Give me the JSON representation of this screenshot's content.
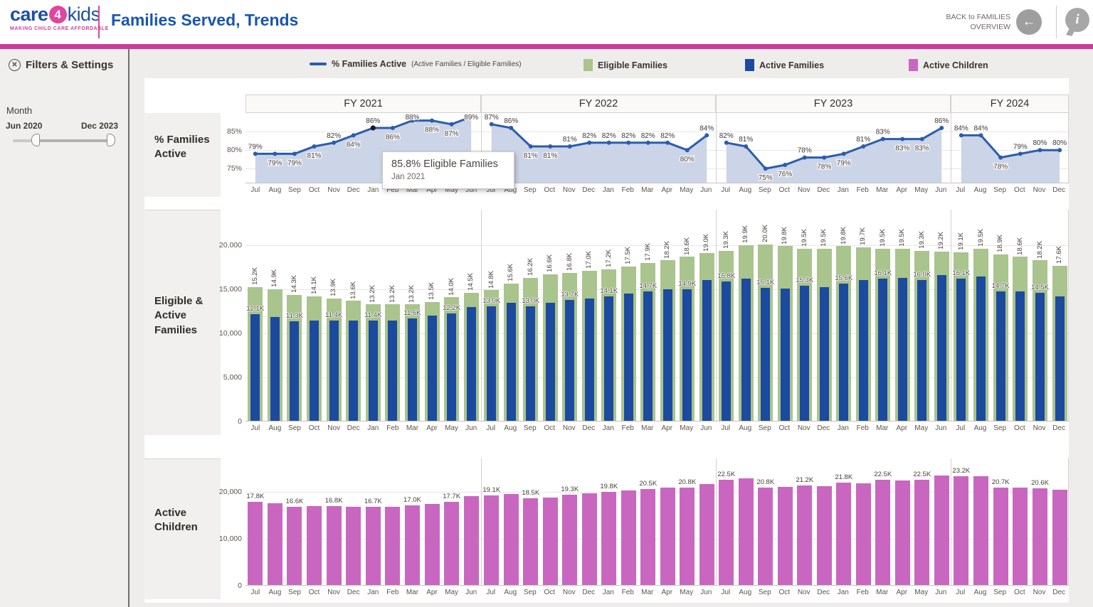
{
  "header": {
    "logo_care": "care",
    "logo_4": "4",
    "logo_kids": "kids",
    "tagline": "MAKING CHILD CARE AFFORDABLE",
    "title": "Families Served, Trends",
    "back_line1": "BACK to FAMILIES",
    "back_line2": "OVERVIEW",
    "back_arrow": "←",
    "info_glyph": "i"
  },
  "sidebar": {
    "filters_title": "Filters & Settings",
    "collapse_glyph": "✕",
    "month_label": "Month",
    "range_start": "Jun 2020",
    "range_end": "Dec 2023"
  },
  "legend": {
    "line_label": "% Families Active",
    "line_sublabel": "(Active Families / Eligible Families)",
    "eligible_label": "Eligible Families",
    "active_label": "Active Families",
    "children_label": "Active Children"
  },
  "tooltip": {
    "value": "85.8% Eligible Families",
    "date": "Jan 2021"
  },
  "colors": {
    "brand_pink": "#cb3a9c",
    "brand_blue": "#1955b0",
    "line_blue": "#2b5dab",
    "area_fill": "#ccd4e8",
    "marked_point": "#1a1a1a",
    "eligible_green": "#a9c48d",
    "active_navy": "#1b4a9f",
    "children_magenta": "#c967c0"
  },
  "chart_data": [
    {
      "type": "area",
      "row_label": "% Families Active",
      "legend_position": "top",
      "grid": true,
      "ylim": [
        71,
        92
      ],
      "y_ticks": [
        {
          "label": "85%",
          "v": 85
        },
        {
          "label": "80%",
          "v": 80
        },
        {
          "label": "75%",
          "v": 75
        }
      ],
      "panels": [
        {
          "fy": "FY 2021",
          "months": [
            "Jul",
            "Aug",
            "Sep",
            "Oct",
            "Nov",
            "Dec",
            "Jan",
            "Feb",
            "Mar",
            "Apr",
            "May",
            "Jun"
          ],
          "values": [
            79,
            79,
            79,
            81,
            82,
            84,
            86,
            86,
            88,
            88,
            87,
            89
          ],
          "label_pos": [
            "a",
            "b",
            "b",
            "b",
            "a",
            "b",
            "a",
            "b",
            "a",
            "b",
            "b",
            "a"
          ],
          "marked_index": 6
        },
        {
          "fy": "FY 2022",
          "months": [
            "Jul",
            "Aug",
            "Sep",
            "Oct",
            "Nov",
            "Dec",
            "Jan",
            "Feb",
            "Mar",
            "Apr",
            "May",
            "Jun"
          ],
          "values": [
            87,
            86,
            81,
            81,
            81,
            82,
            82,
            82,
            82,
            82,
            80,
            84
          ],
          "label_pos": [
            "a",
            "a",
            "b",
            "b",
            "a",
            "a",
            "a",
            "a",
            "a",
            "a",
            "b",
            "a"
          ]
        },
        {
          "fy": "FY 2023",
          "months": [
            "Jul",
            "Aug",
            "Sep",
            "Oct",
            "Nov",
            "Dec",
            "Jan",
            "Feb",
            "Mar",
            "Apr",
            "May",
            "Jun"
          ],
          "values": [
            82,
            81,
            75,
            76,
            78,
            78,
            79,
            81,
            83,
            83,
            83,
            86
          ],
          "label_pos": [
            "a",
            "a",
            "b",
            "b",
            "a",
            "b",
            "b",
            "a",
            "a",
            "b",
            "b",
            "a"
          ]
        },
        {
          "fy": "FY 2024",
          "months": [
            "Jul",
            "Aug",
            "Sep",
            "Oct",
            "Nov",
            "Dec"
          ],
          "values": [
            84,
            84,
            78,
            79,
            80,
            80
          ],
          "label_pos": [
            "a",
            "a",
            "b",
            "a",
            "a",
            "a"
          ]
        }
      ]
    },
    {
      "type": "bar",
      "row_label": "Eligible & Active Families",
      "units": "thousands",
      "series": [
        "Eligible Families",
        "Active Families"
      ],
      "ylim": [
        0,
        23000
      ],
      "y_ticks": [
        {
          "label": "20,000",
          "v": 20
        },
        {
          "label": "15,000",
          "v": 15
        },
        {
          "label": "10,000",
          "v": 10
        },
        {
          "label": "5,000",
          "v": 5
        },
        {
          "label": "0",
          "v": 0
        }
      ],
      "panels": [
        {
          "fy": "FY 2021",
          "months": [
            "Jul",
            "Aug",
            "Sep",
            "Oct",
            "Nov",
            "Dec",
            "Jan",
            "Feb",
            "Mar",
            "Apr",
            "May",
            "Jun"
          ],
          "eligible": [
            15.2,
            14.9,
            14.3,
            14.1,
            13.9,
            13.6,
            13.2,
            13.2,
            13.2,
            13.5,
            14.0,
            14.5
          ],
          "active": [
            12.1,
            11.8,
            11.3,
            11.4,
            11.4,
            11.4,
            11.4,
            11.4,
            11.6,
            11.9,
            12.2,
            12.9
          ],
          "active_labeled": [
            true,
            false,
            true,
            false,
            true,
            false,
            true,
            false,
            true,
            false,
            true,
            false
          ]
        },
        {
          "fy": "FY 2022",
          "months": [
            "Jul",
            "Aug",
            "Sep",
            "Oct",
            "Nov",
            "Dec",
            "Jan",
            "Feb",
            "Mar",
            "Apr",
            "May",
            "Jun"
          ],
          "eligible": [
            14.8,
            15.6,
            16.2,
            16.6,
            16.8,
            17.0,
            17.2,
            17.5,
            17.9,
            18.2,
            18.6,
            19.0
          ],
          "active": [
            13.0,
            13.4,
            13.0,
            13.4,
            13.7,
            13.9,
            14.1,
            14.4,
            14.7,
            14.9,
            14.9,
            16.0
          ],
          "active_labeled": [
            true,
            false,
            true,
            false,
            true,
            false,
            true,
            false,
            true,
            false,
            true,
            false
          ]
        },
        {
          "fy": "FY 2023",
          "months": [
            "Jul",
            "Aug",
            "Sep",
            "Oct",
            "Nov",
            "Dec",
            "Jan",
            "Feb",
            "Mar",
            "Apr",
            "May",
            "Jun"
          ],
          "eligible": [
            19.3,
            19.9,
            20.0,
            19.8,
            19.5,
            19.5,
            19.8,
            19.7,
            19.5,
            19.5,
            19.3,
            19.2
          ],
          "active": [
            15.8,
            16.1,
            15.1,
            15.0,
            15.3,
            15.2,
            15.6,
            16.0,
            16.1,
            16.2,
            16.0,
            16.5
          ],
          "active_labeled": [
            true,
            false,
            true,
            false,
            true,
            false,
            true,
            false,
            true,
            false,
            true,
            false
          ]
        },
        {
          "fy": "FY 2024",
          "months": [
            "Jul",
            "Aug",
            "Sep",
            "Oct",
            "Nov",
            "Dec"
          ],
          "eligible": [
            19.1,
            19.5,
            18.9,
            18.6,
            18.2,
            17.6
          ],
          "active": [
            16.1,
            16.4,
            14.7,
            14.7,
            14.5,
            14.1
          ],
          "active_labeled": [
            true,
            false,
            true,
            false,
            true,
            false
          ]
        }
      ]
    },
    {
      "type": "bar",
      "row_label": "Active Children",
      "units": "thousands",
      "series": [
        "Active Children"
      ],
      "ylim": [
        0,
        27000
      ],
      "y_ticks": [
        {
          "label": "20,000",
          "v": 20
        },
        {
          "label": "10,000",
          "v": 10
        },
        {
          "label": "0",
          "v": 0
        }
      ],
      "panels": [
        {
          "fy": "FY 2021",
          "months": [
            "Jul",
            "Aug",
            "Sep",
            "Oct",
            "Nov",
            "Dec",
            "Jan",
            "Feb",
            "Mar",
            "Apr",
            "May",
            "Jun"
          ],
          "values": [
            17.8,
            17.5,
            16.6,
            16.8,
            16.8,
            16.6,
            16.7,
            16.6,
            17.0,
            17.3,
            17.7,
            18.9
          ],
          "labeled": [
            true,
            false,
            true,
            false,
            true,
            false,
            true,
            false,
            true,
            false,
            true,
            false
          ]
        },
        {
          "fy": "FY 2022",
          "months": [
            "Jul",
            "Aug",
            "Sep",
            "Oct",
            "Nov",
            "Dec",
            "Jan",
            "Feb",
            "Mar",
            "Apr",
            "May",
            "Jun"
          ],
          "values": [
            19.1,
            19.4,
            18.5,
            18.6,
            19.3,
            19.5,
            19.8,
            20.2,
            20.5,
            20.7,
            20.8,
            21.5
          ],
          "labeled": [
            true,
            false,
            true,
            false,
            true,
            false,
            true,
            false,
            true,
            false,
            true,
            false
          ]
        },
        {
          "fy": "FY 2023",
          "months": [
            "Jul",
            "Aug",
            "Sep",
            "Oct",
            "Nov",
            "Dec",
            "Jan",
            "Feb",
            "Mar",
            "Apr",
            "May",
            "Jun"
          ],
          "values": [
            22.5,
            22.8,
            20.8,
            20.9,
            21.2,
            21.1,
            21.8,
            21.7,
            22.5,
            22.3,
            22.5,
            23.4
          ],
          "labeled": [
            true,
            false,
            true,
            false,
            true,
            false,
            true,
            false,
            true,
            false,
            true,
            false
          ]
        },
        {
          "fy": "FY 2024",
          "months": [
            "Jul",
            "Aug",
            "Sep",
            "Oct",
            "Nov",
            "Dec"
          ],
          "values": [
            23.2,
            23.2,
            20.7,
            20.8,
            20.6,
            20.3
          ],
          "labeled": [
            true,
            false,
            true,
            false,
            true,
            false
          ]
        }
      ]
    }
  ]
}
